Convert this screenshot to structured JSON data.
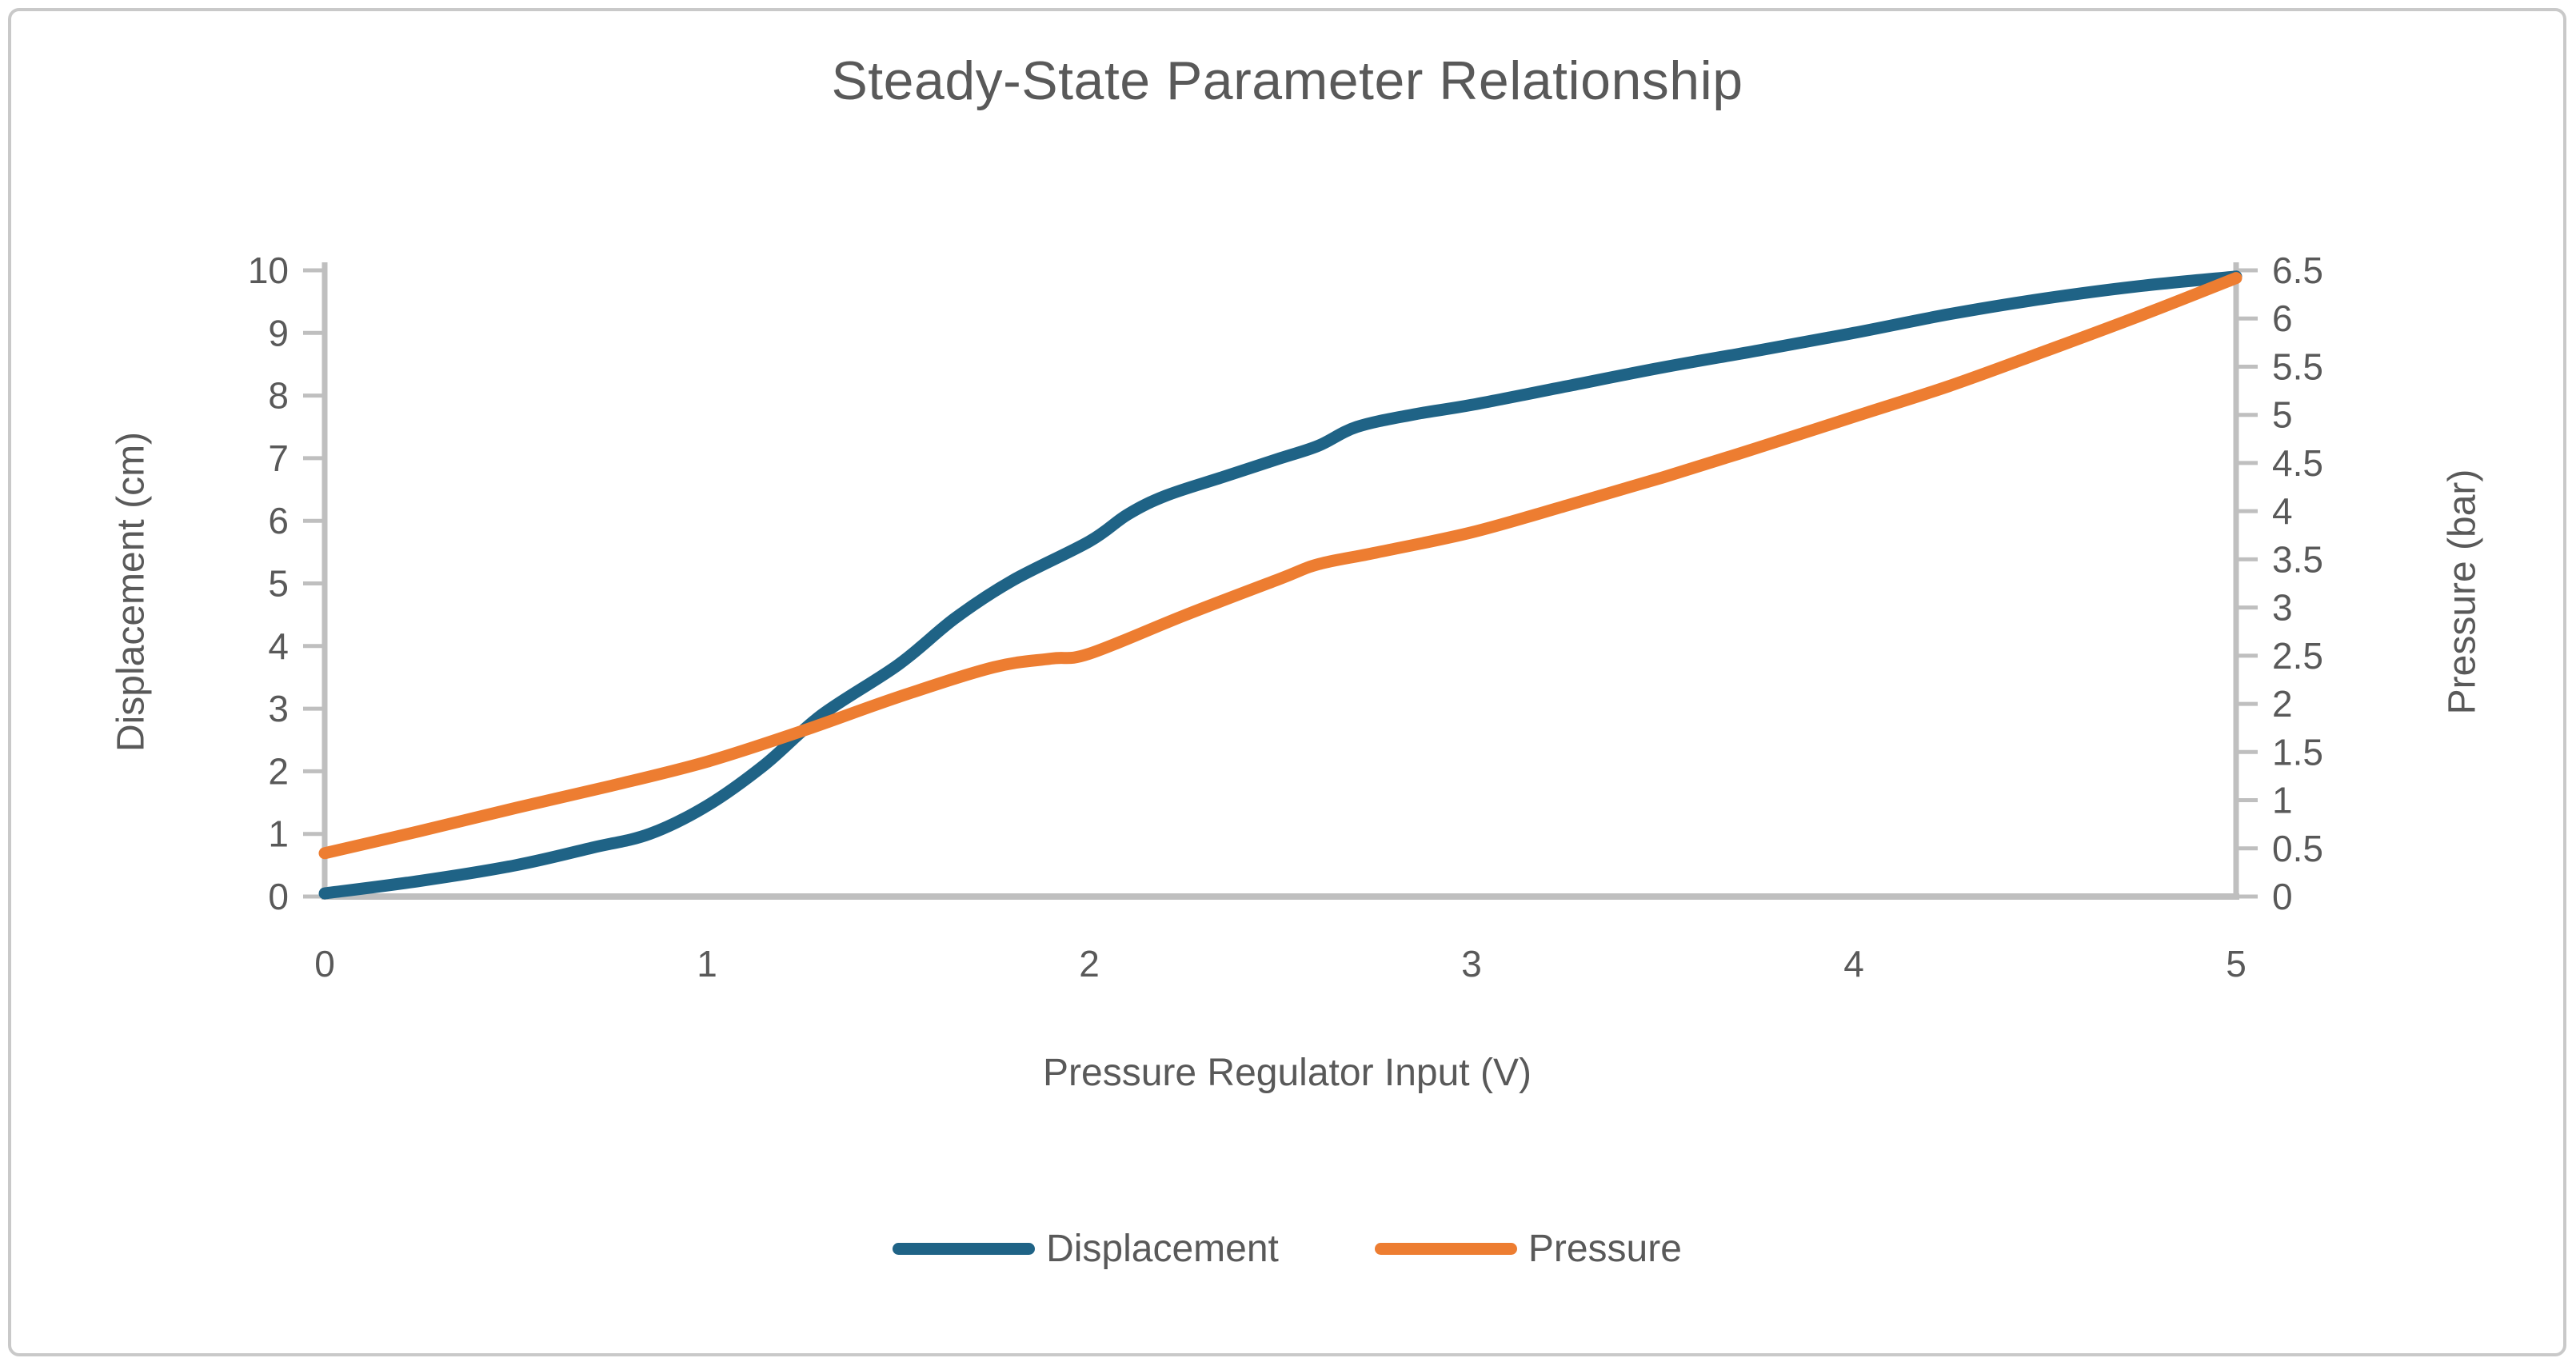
{
  "chart_data": {
    "type": "line",
    "title": "Steady-State Parameter Relationship",
    "xlabel": "Pressure Regulator Input (V)",
    "ylabel_left": "Displacement (cm)",
    "ylabel_right": "Pressure (bar)",
    "x_axis": {
      "min": 0,
      "max": 5,
      "ticks": [
        0,
        1,
        2,
        3,
        4,
        5
      ]
    },
    "y_axis_left": {
      "min": 0,
      "max": 10,
      "ticks": [
        0,
        1,
        2,
        3,
        4,
        5,
        6,
        7,
        8,
        9,
        10
      ]
    },
    "y_axis_right": {
      "min": 0,
      "max": 6.5,
      "ticks": [
        0,
        0.5,
        1,
        1.5,
        2,
        2.5,
        3,
        3.5,
        4,
        4.5,
        5,
        5.5,
        6,
        6.5
      ]
    },
    "grid": false,
    "legend_position": "bottom",
    "series": [
      {
        "name": "Displacement",
        "axis": "left",
        "color": "#1F6386",
        "x": [
          0,
          0.25,
          0.5,
          0.7,
          0.85,
          1,
          1.15,
          1.3,
          1.5,
          1.65,
          1.8,
          2,
          2.1,
          2.2,
          2.35,
          2.5,
          2.6,
          2.7,
          2.85,
          3,
          3.25,
          3.5,
          3.75,
          4,
          4.25,
          4.5,
          4.75,
          5
        ],
        "y": [
          0.05,
          0.25,
          0.5,
          0.78,
          1.0,
          1.45,
          2.1,
          2.9,
          3.7,
          4.45,
          5.05,
          5.67,
          6.1,
          6.4,
          6.7,
          7.0,
          7.2,
          7.5,
          7.7,
          7.85,
          8.15,
          8.45,
          8.72,
          9.0,
          9.3,
          9.55,
          9.75,
          9.9
        ]
      },
      {
        "name": "Pressure",
        "axis": "right",
        "color": "#ED7D31",
        "x": [
          0,
          0.25,
          0.5,
          0.75,
          1,
          1.25,
          1.5,
          1.75,
          1.9,
          2,
          2.25,
          2.5,
          2.6,
          2.75,
          3,
          3.25,
          3.5,
          3.75,
          4,
          4.25,
          4.5,
          4.75,
          5
        ],
        "y": [
          0.45,
          0.68,
          0.92,
          1.15,
          1.4,
          1.72,
          2.07,
          2.38,
          2.47,
          2.52,
          2.92,
          3.3,
          3.45,
          3.57,
          3.78,
          4.06,
          4.35,
          4.66,
          4.98,
          5.3,
          5.66,
          6.03,
          6.42
        ]
      }
    ]
  },
  "colors": {
    "text": "#595959",
    "axis": "#BFBFBF",
    "frame_border": "#C9C9C9",
    "background": "#FFFFFF",
    "series_displacement": "#1F6386",
    "series_pressure": "#ED7D31"
  }
}
